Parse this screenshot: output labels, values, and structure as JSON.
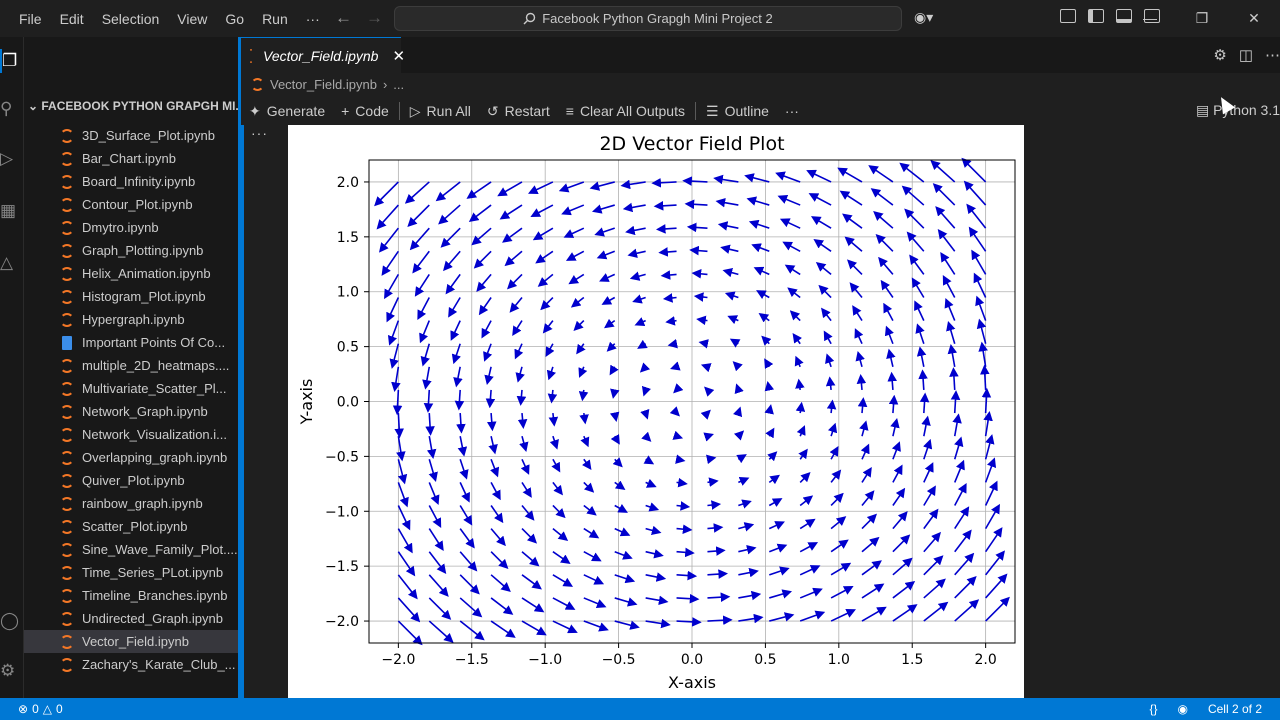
{
  "menu": [
    "File",
    "Edit",
    "Selection",
    "View",
    "Go",
    "Run",
    "···"
  ],
  "command_center": "Facebook Python Grapgh Mini Project 2",
  "copilot_icon": "copilot-icon",
  "sidebar": {
    "header": "FACEBOOK PYTHON GRAPGH MI...",
    "files": [
      {
        "name": "3D_Surface_Plot.ipynb",
        "type": "notebook"
      },
      {
        "name": "Bar_Chart.ipynb",
        "type": "notebook"
      },
      {
        "name": "Board_Infinity.ipynb",
        "type": "notebook"
      },
      {
        "name": "Contour_Plot.ipynb",
        "type": "notebook"
      },
      {
        "name": "Dmytro.ipynb",
        "type": "notebook"
      },
      {
        "name": "Graph_Plotting.ipynb",
        "type": "notebook"
      },
      {
        "name": "Helix_Animation.ipynb",
        "type": "notebook"
      },
      {
        "name": "Histogram_Plot.ipynb",
        "type": "notebook"
      },
      {
        "name": "Hypergraph.ipynb",
        "type": "notebook"
      },
      {
        "name": "Important Points Of Co...",
        "type": "document"
      },
      {
        "name": "multiple_2D_heatmaps....",
        "type": "notebook"
      },
      {
        "name": "Multivariate_Scatter_Pl...",
        "type": "notebook"
      },
      {
        "name": "Network_Graph.ipynb",
        "type": "notebook"
      },
      {
        "name": "Network_Visualization.i...",
        "type": "notebook"
      },
      {
        "name": "Overlapping_graph.ipynb",
        "type": "notebook"
      },
      {
        "name": "Quiver_Plot.ipynb",
        "type": "notebook"
      },
      {
        "name": "rainbow_graph.ipynb",
        "type": "notebook"
      },
      {
        "name": "Scatter_Plot.ipynb",
        "type": "notebook"
      },
      {
        "name": "Sine_Wave_Family_Plot....",
        "type": "notebook"
      },
      {
        "name": "Time_Series_PLot.ipynb",
        "type": "notebook"
      },
      {
        "name": "Timeline_Branches.ipynb",
        "type": "notebook"
      },
      {
        "name": "Undirected_Graph.ipynb",
        "type": "notebook"
      },
      {
        "name": "Vector_Field.ipynb",
        "type": "notebook",
        "selected": true
      },
      {
        "name": "Zachary's_Karate_Club_...",
        "type": "notebook"
      }
    ]
  },
  "editor": {
    "tab_title": "Vector_Field.ipynb",
    "breadcrumb": [
      "Vector_Field.ipynb",
      "..."
    ],
    "toolbar": {
      "generate": "Generate",
      "code": "Code",
      "run_all": "Run All",
      "restart": "Restart",
      "clear_outputs": "Clear All Outputs",
      "outline": "Outline",
      "more": "···"
    },
    "kernel": "Python 3.1",
    "cell_more": "···"
  },
  "status": {
    "errors": "0",
    "warnings": "0",
    "braces": "{}",
    "cell": "Cell 2 of 2"
  },
  "colors": {
    "accent": "#0078d4",
    "notebook_icon": "#f37726",
    "arrow": "#0000cd"
  },
  "chart_data": {
    "type": "quiver",
    "title": "2D Vector Field Plot",
    "xlabel": "X-axis",
    "ylabel": "Y-axis",
    "field": {
      "u": "-y",
      "v": "x"
    },
    "grid_x": [
      -2.0,
      2.0,
      20
    ],
    "grid_y": [
      -2.0,
      2.0,
      20
    ],
    "xlim": [
      -2.2,
      2.2
    ],
    "ylim": [
      -2.2,
      2.2
    ],
    "xticks": [
      "−2.0",
      "−1.5",
      "−1.0",
      "−0.5",
      "0.0",
      "0.5",
      "1.0",
      "1.5",
      "2.0"
    ],
    "xtick_values": [
      -2.0,
      -1.5,
      -1.0,
      -0.5,
      0.0,
      0.5,
      1.0,
      1.5,
      2.0
    ],
    "yticks": [
      "−2.0",
      "−1.5",
      "−1.0",
      "−0.5",
      "0.0",
      "0.5",
      "1.0",
      "1.5",
      "2.0"
    ],
    "ytick_values": [
      -2.0,
      -1.5,
      -1.0,
      -0.5,
      0.0,
      0.5,
      1.0,
      1.5,
      2.0
    ],
    "grid": true,
    "arrow_color": "#0000cd"
  }
}
